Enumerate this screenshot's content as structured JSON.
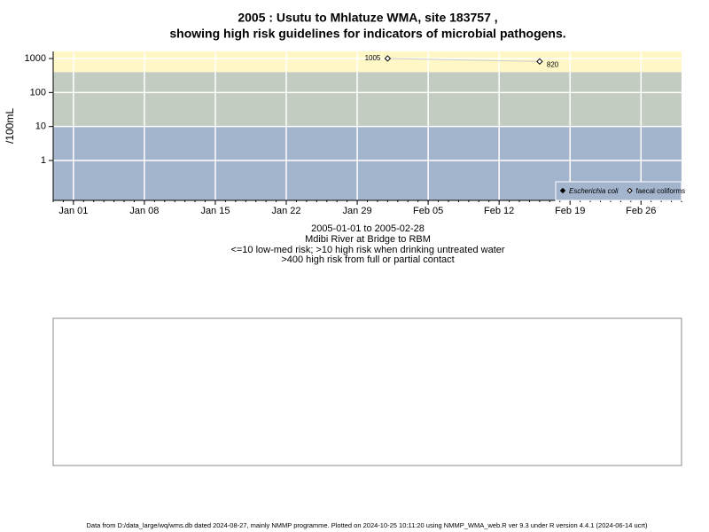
{
  "chart_data": {
    "type": "line",
    "title": [
      "2005 : Usutu to Mhlatuze WMA, site 183757 ,",
      "showing high risk guidelines for indicators of microbial pathogens."
    ],
    "y_label": "/100mL",
    "notes": [
      "2005-01-01 to 2005-02-28",
      "Mdibi River at Bridge to RBM",
      "<=10 low-med risk; >10 high risk when drinking untreated water",
      ">400 high risk from full or partial contact"
    ],
    "footer": "Data from D:/data_large/wq/wms.db dated 2024-08-27, mainly NMMP programme. Plotted on 2024-10-25 10:11:20 using NMMP_WMA_web.R ver 9.3 under R version 4.4.1 (2024-06-14 ucrt)",
    "x": [
      "2005-02-01",
      "2005-02-16"
    ],
    "series": [
      {
        "name": "Escherichia coli",
        "color": "#000000",
        "marker": "filled-diamond",
        "values": [
          null,
          null
        ]
      },
      {
        "name": "faecal coliforms",
        "color": "#000000",
        "marker": "open-diamond",
        "line_color": "#cccccc",
        "values": [
          1005,
          820
        ]
      }
    ],
    "xlim": [
      "2004-12-30",
      "2005-03-02"
    ],
    "xticks": [
      {
        "value": "2005-01-01",
        "label": "Jan 01"
      },
      {
        "value": "2005-01-08",
        "label": "Jan 08"
      },
      {
        "value": "2005-01-15",
        "label": "Jan 15"
      },
      {
        "value": "2005-01-22",
        "label": "Jan 22"
      },
      {
        "value": "2005-01-29",
        "label": "Jan 29"
      },
      {
        "value": "2005-02-05",
        "label": "Feb 05"
      },
      {
        "value": "2005-02-12",
        "label": "Feb 12"
      },
      {
        "value": "2005-02-19",
        "label": "Feb 19"
      },
      {
        "value": "2005-02-26",
        "label": "Feb 26"
      }
    ],
    "ylim": [
      0.067,
      1620
    ],
    "yticks": [
      1,
      10,
      100,
      1000
    ],
    "log_y": true,
    "grid": true,
    "thresholds": [
      10,
      400
    ],
    "band_colors": [
      "#a3b4cd",
      "#c3ccc1",
      "#fff7c6"
    ],
    "legend": "bottom-right"
  }
}
